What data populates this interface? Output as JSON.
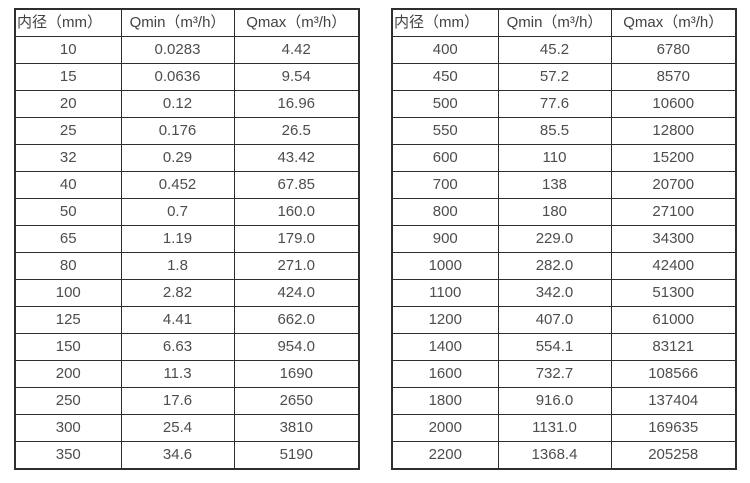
{
  "colors": {
    "border": "#2e2e2e",
    "text": "#4d4d4d",
    "background": "#ffffff"
  },
  "chart_data": [
    {
      "type": "table",
      "title": "",
      "columns": [
        "内径（mm）",
        "Qmin（m³/h）",
        "Qmax（m³/h）"
      ],
      "rows": [
        [
          "10",
          "0.0283",
          "4.42"
        ],
        [
          "15",
          "0.0636",
          "9.54"
        ],
        [
          "20",
          "0.12",
          "16.96"
        ],
        [
          "25",
          "0.176",
          "26.5"
        ],
        [
          "32",
          "0.29",
          "43.42"
        ],
        [
          "40",
          "0.452",
          "67.85"
        ],
        [
          "50",
          "0.7",
          "160.0"
        ],
        [
          "65",
          "1.19",
          "179.0"
        ],
        [
          "80",
          "1.8",
          "271.0"
        ],
        [
          "100",
          "2.82",
          "424.0"
        ],
        [
          "125",
          "4.41",
          "662.0"
        ],
        [
          "150",
          "6.63",
          "954.0"
        ],
        [
          "200",
          "11.3",
          "1690"
        ],
        [
          "250",
          "17.6",
          "2650"
        ],
        [
          "300",
          "25.4",
          "3810"
        ],
        [
          "350",
          "34.6",
          "5190"
        ]
      ]
    },
    {
      "type": "table",
      "title": "",
      "columns": [
        "内径（mm）",
        "Qmin（m³/h）",
        "Qmax（m³/h）"
      ],
      "rows": [
        [
          "400",
          "45.2",
          "6780"
        ],
        [
          "450",
          "57.2",
          "8570"
        ],
        [
          "500",
          "77.6",
          "10600"
        ],
        [
          "550",
          "85.5",
          "12800"
        ],
        [
          "600",
          "110",
          "15200"
        ],
        [
          "700",
          "138",
          "20700"
        ],
        [
          "800",
          "180",
          "27100"
        ],
        [
          "900",
          "229.0",
          "34300"
        ],
        [
          "1000",
          "282.0",
          "42400"
        ],
        [
          "1100",
          "342.0",
          "51300"
        ],
        [
          "1200",
          "407.0",
          "61000"
        ],
        [
          "1400",
          "554.1",
          "83121"
        ],
        [
          "1600",
          "732.7",
          "108566"
        ],
        [
          "1800",
          "916.0",
          "137404"
        ],
        [
          "2000",
          "1131.0",
          "169635"
        ],
        [
          "2200",
          "1368.4",
          "205258"
        ]
      ]
    }
  ]
}
